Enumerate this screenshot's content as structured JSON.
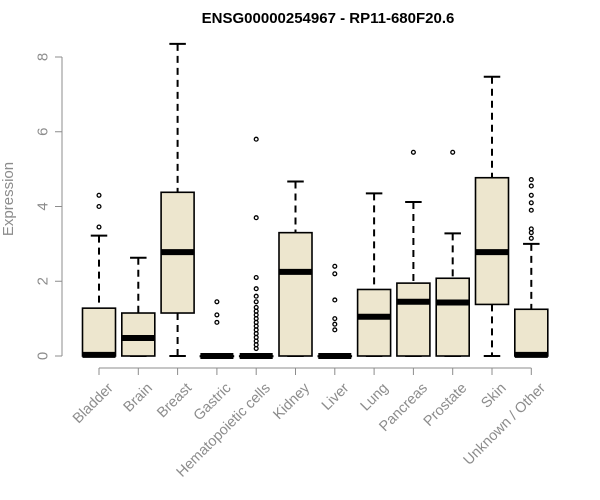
{
  "chart_data": {
    "type": "boxplot",
    "title": "ENSG00000254967 - RP11-680F20.6",
    "xlabel": "",
    "ylabel": "Expression",
    "ylim": [
      0,
      8.4
    ],
    "yticks": [
      0,
      2,
      4,
      6,
      8
    ],
    "grid": false,
    "box_color": "#ede6ce",
    "categories": [
      "Bladder",
      "Brain",
      "Breast",
      "Gastric",
      "Hematopoietic cells",
      "Kidney",
      "Liver",
      "Lung",
      "Pancreas",
      "Prostate",
      "Skin",
      "Unknown / Other"
    ],
    "series": [
      {
        "whisker_low": 0,
        "q1": 0,
        "median": 0.03,
        "q3": 1.28,
        "whisker_high": 3.22,
        "outliers": [
          3.45,
          4.0,
          4.3
        ]
      },
      {
        "whisker_low": 0,
        "q1": 0,
        "median": 0.48,
        "q3": 1.15,
        "whisker_high": 2.63,
        "outliers": []
      },
      {
        "whisker_low": 0,
        "q1": 1.15,
        "median": 2.78,
        "q3": 4.38,
        "whisker_high": 8.35,
        "outliers": []
      },
      {
        "whisker_low": 0,
        "q1": 0,
        "median": 0,
        "q3": 0,
        "whisker_high": 0,
        "outliers": [
          0.9,
          1.1,
          1.45
        ]
      },
      {
        "whisker_low": 0,
        "q1": 0,
        "median": 0,
        "q3": 0,
        "whisker_high": 0,
        "outliers": [
          0.2,
          0.3,
          0.4,
          0.5,
          0.6,
          0.7,
          0.8,
          0.9,
          1.0,
          1.1,
          1.2,
          1.3,
          1.45,
          1.6,
          1.8,
          2.1,
          3.7,
          5.8
        ]
      },
      {
        "whisker_low": 0,
        "q1": 0,
        "median": 2.25,
        "q3": 3.3,
        "whisker_high": 4.67,
        "outliers": []
      },
      {
        "whisker_low": 0,
        "q1": 0,
        "median": 0,
        "q3": 0,
        "whisker_high": 0,
        "outliers": [
          0.7,
          0.85,
          1.0,
          1.5,
          2.2,
          2.4
        ]
      },
      {
        "whisker_low": 0,
        "q1": 0,
        "median": 1.05,
        "q3": 1.78,
        "whisker_high": 4.35,
        "outliers": []
      },
      {
        "whisker_low": 0,
        "q1": 0,
        "median": 1.45,
        "q3": 1.95,
        "whisker_high": 4.12,
        "outliers": [
          5.45
        ]
      },
      {
        "whisker_low": 0,
        "q1": 0,
        "median": 1.43,
        "q3": 2.08,
        "whisker_high": 3.28,
        "outliers": [
          5.45
        ]
      },
      {
        "whisker_low": 0,
        "q1": 1.38,
        "median": 2.78,
        "q3": 4.77,
        "whisker_high": 7.47,
        "outliers": []
      },
      {
        "whisker_low": 0,
        "q1": 0,
        "median": 0.03,
        "q3": 1.25,
        "whisker_high": 3.0,
        "outliers": [
          3.15,
          3.3,
          3.4,
          3.9,
          4.1,
          4.3,
          4.55,
          4.72
        ]
      }
    ]
  }
}
